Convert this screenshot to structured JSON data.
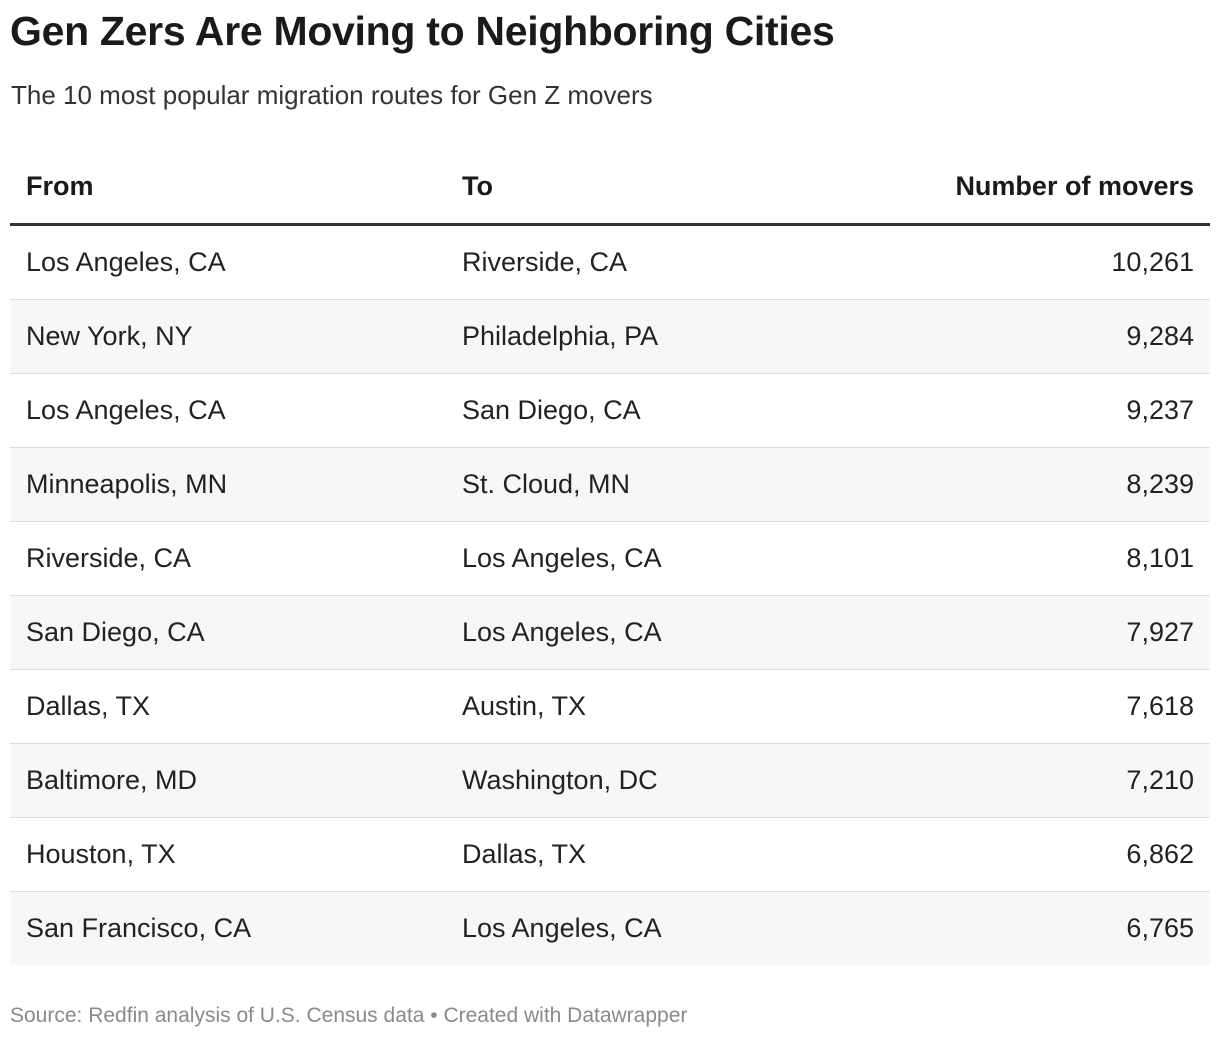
{
  "header": {
    "title": "Gen Zers Are Moving to Neighboring Cities",
    "subtitle": "The 10 most popular migration routes for Gen Z movers"
  },
  "footer": {
    "source": "Source: Redfin analysis of U.S. Census data",
    "separator": "•",
    "credit": "Created with Datawrapper"
  },
  "chart_data": {
    "type": "table",
    "columns": [
      "From",
      "To",
      "Number of movers"
    ],
    "rows": [
      {
        "from": "Los Angeles, CA",
        "to": "Riverside, CA",
        "movers": "10,261"
      },
      {
        "from": "New York, NY",
        "to": "Philadelphia, PA",
        "movers": "9,284"
      },
      {
        "from": "Los Angeles, CA",
        "to": "San Diego, CA",
        "movers": "9,237"
      },
      {
        "from": "Minneapolis, MN",
        "to": "St. Cloud, MN",
        "movers": "8,239"
      },
      {
        "from": "Riverside, CA",
        "to": "Los Angeles, CA",
        "movers": "8,101"
      },
      {
        "from": "San Diego, CA",
        "to": "Los Angeles, CA",
        "movers": "7,927"
      },
      {
        "from": "Dallas, TX",
        "to": "Austin, TX",
        "movers": "7,618"
      },
      {
        "from": "Baltimore, MD",
        "to": "Washington, DC",
        "movers": "7,210"
      },
      {
        "from": "Houston, TX",
        "to": "Dallas, TX",
        "movers": "6,862"
      },
      {
        "from": "San Francisco, CA",
        "to": "Los Angeles, CA",
        "movers": "6,765"
      }
    ]
  }
}
